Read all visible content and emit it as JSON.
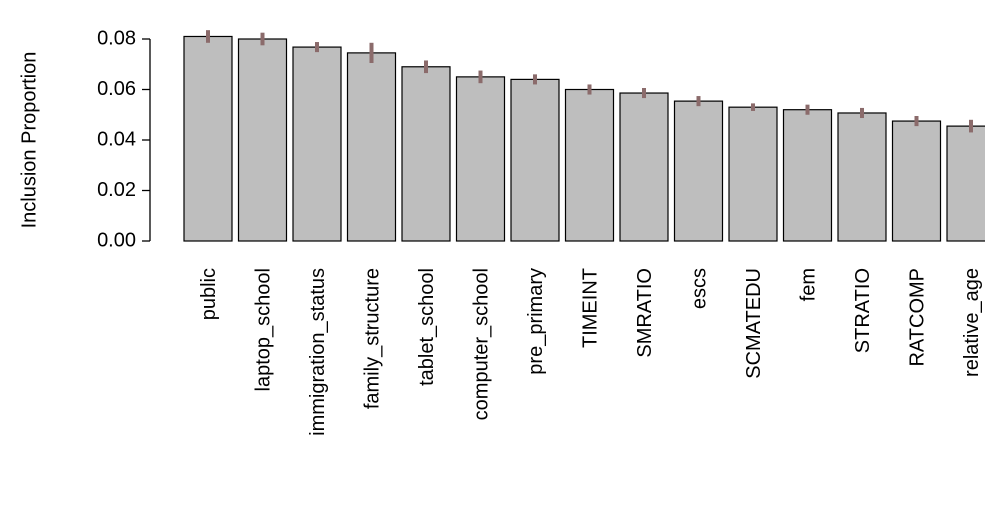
{
  "chart_data": {
    "type": "bar",
    "y_label": "Inclusion Proportion",
    "categories": [
      "public",
      "laptop_school",
      "immigration_status",
      "family_structure",
      "tablet_school",
      "computer_school",
      "pre_primary",
      "TIMEINT",
      "SMRATIO",
      "escs",
      "SCMATEDU",
      "fem",
      "STRATIO",
      "RATCOMP",
      "relative_age"
    ],
    "values": [
      0.081,
      0.08,
      0.0768,
      0.0745,
      0.069,
      0.065,
      0.064,
      0.06,
      0.0586,
      0.0554,
      0.053,
      0.052,
      0.0507,
      0.0475,
      0.0455
    ],
    "errors": [
      0.0025,
      0.0025,
      0.002,
      0.004,
      0.0025,
      0.0025,
      0.002,
      0.002,
      0.002,
      0.002,
      0.0015,
      0.002,
      0.002,
      0.002,
      0.0025
    ],
    "color": "#bebebe",
    "error_color": "#8b6b6b",
    "ylim": [
      0,
      0.08
    ],
    "yticks": [
      {
        "value": 0,
        "label": "0.00"
      },
      {
        "value": 0.02,
        "label": "0.02"
      },
      {
        "value": 0.04,
        "label": "0.04"
      },
      {
        "value": 0.06,
        "label": "0.06"
      },
      {
        "value": 0.08,
        "label": "0.08"
      }
    ]
  }
}
